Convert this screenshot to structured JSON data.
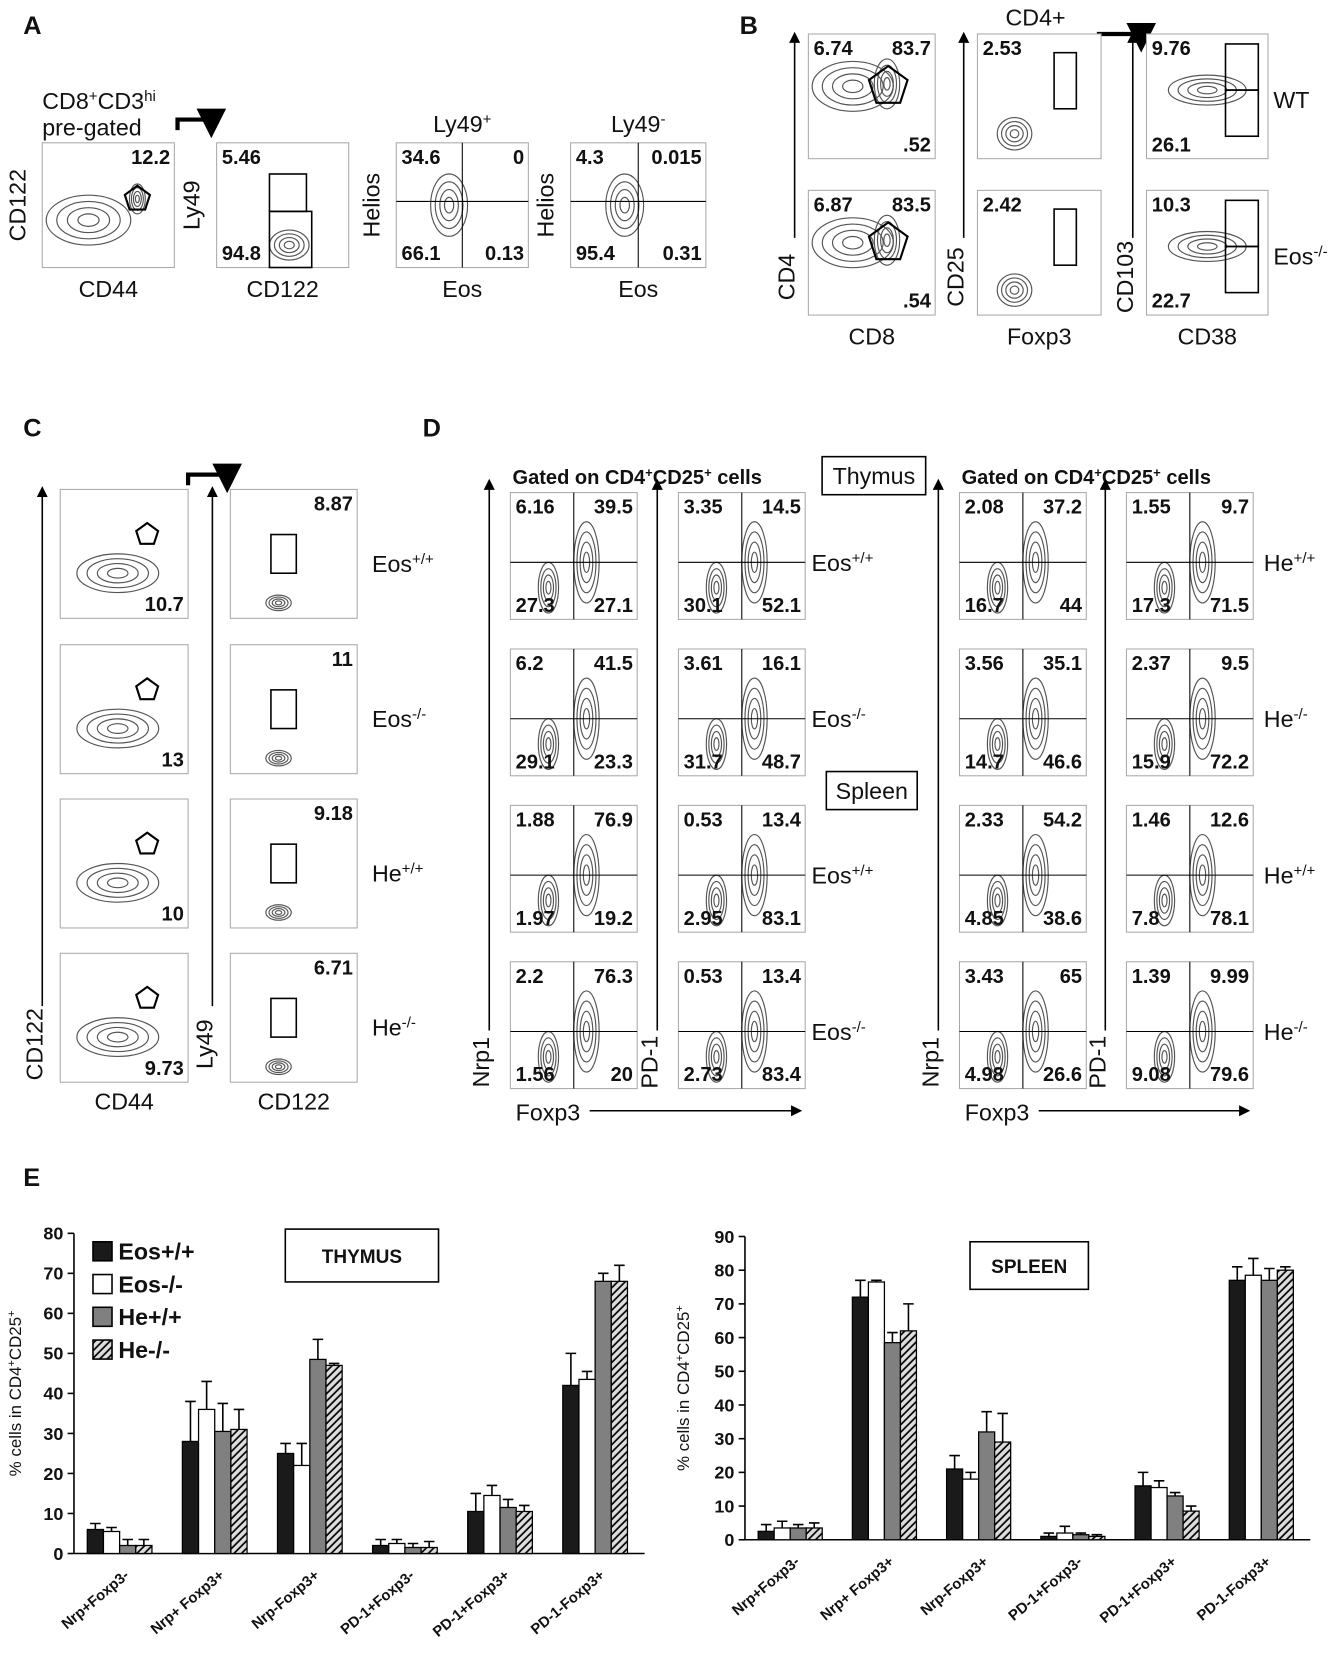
{
  "panel_labels": [
    "A",
    "B",
    "C",
    "D",
    "E"
  ],
  "A": {
    "pregate": [
      "CD8",
      "+",
      "CD3",
      "hi"
    ],
    "pregate_line2": "pre-gated",
    "plots": [
      {
        "ylabel": "CD122",
        "xlabel": "CD44",
        "numbers": {
          "tr": "12.2"
        }
      },
      {
        "ylabel": "Ly49",
        "xlabel": "CD122",
        "numbers": {
          "tl": "5.46",
          "bl": "94.8"
        }
      },
      {
        "title": [
          "Ly49",
          "+"
        ],
        "ylabel": "Helios",
        "xlabel": "Eos",
        "numbers": {
          "tl": "34.6",
          "tr": "0",
          "bl": "66.1",
          "br": "0.13"
        }
      },
      {
        "title": [
          "Ly49",
          "-"
        ],
        "ylabel": "Helios",
        "xlabel": "Eos",
        "numbers": {
          "tl": "4.3",
          "tr": "0.015",
          "bl": "95.4",
          "br": "0.31"
        }
      }
    ]
  },
  "B": {
    "header": "CD4+",
    "columns": [
      {
        "ylabel": "CD4",
        "xlabel": "CD8"
      },
      {
        "ylabel": "CD25",
        "xlabel": "Foxp3"
      },
      {
        "ylabel": "CD103",
        "xlabel": "CD38"
      }
    ],
    "rows": [
      {
        "label": [
          "WT"
        ],
        "plots": [
          {
            "tl": "6.74",
            "tr": "83.7",
            "br": ".52"
          },
          {
            "tl": "2.53"
          },
          {
            "tl": "9.76",
            "bl": "26.1"
          }
        ]
      },
      {
        "label": [
          "Eos",
          "-/-"
        ],
        "plots": [
          {
            "tl": "6.87",
            "tr": "83.5",
            "br": ".54"
          },
          {
            "tl": "2.42"
          },
          {
            "tl": "10.3",
            "bl": "22.7"
          }
        ]
      }
    ]
  },
  "C": {
    "columns": [
      {
        "ylabel": "CD122",
        "xlabel": "CD44"
      },
      {
        "ylabel": "Ly49",
        "xlabel": "CD122"
      }
    ],
    "rows": [
      {
        "label": [
          "Eos",
          "+/+"
        ],
        "plots": [
          {
            "br": "10.7"
          },
          {
            "tr": "8.87"
          }
        ]
      },
      {
        "label": [
          "Eos",
          "-/-"
        ],
        "plots": [
          {
            "br": "13"
          },
          {
            "tr": "11"
          }
        ]
      },
      {
        "label": [
          "He",
          "+/+"
        ],
        "plots": [
          {
            "br": "10"
          },
          {
            "tr": "9.18"
          }
        ]
      },
      {
        "label": [
          "He",
          "-/-"
        ],
        "plots": [
          {
            "br": "9.73"
          },
          {
            "tr": "6.71"
          }
        ]
      }
    ]
  },
  "D": {
    "tissues": [
      "Thymus",
      "Spleen"
    ],
    "groups": [
      {
        "header": [
          "Gated on CD4",
          "+",
          "CD25",
          "+",
          " cells"
        ],
        "ylabels": [
          "Nrp1",
          "PD-1"
        ],
        "xlabel": "Foxp3",
        "rows": [
          {
            "label": [
              "Eos",
              "+/+"
            ],
            "plots": [
              {
                "tl": "6.16",
                "tr": "39.5",
                "bl": "27.3",
                "br": "27.1"
              },
              {
                "tl": "3.35",
                "tr": "14.5",
                "bl": "30.1",
                "br": "52.1"
              }
            ]
          },
          {
            "label": [
              "Eos",
              "-/-"
            ],
            "plots": [
              {
                "tl": "6.2",
                "tr": "41.5",
                "bl": "29.1",
                "br": "23.3"
              },
              {
                "tl": "3.61",
                "tr": "16.1",
                "bl": "31.7",
                "br": "48.7"
              }
            ]
          },
          {
            "label": [
              "Eos",
              "+/+"
            ],
            "plots": [
              {
                "tl": "1.88",
                "tr": "76.9",
                "bl": "1.97",
                "br": "19.2"
              },
              {
                "tl": "0.53",
                "tr": "13.4",
                "bl": "2.95",
                "br": "83.1"
              }
            ]
          },
          {
            "label": [
              "Eos",
              "-/-"
            ],
            "plots": [
              {
                "tl": "2.2",
                "tr": "76.3",
                "bl": "1.56",
                "br": "20"
              },
              {
                "tl": "0.53",
                "tr": "13.4",
                "bl": "2.73",
                "br": "83.4"
              }
            ]
          }
        ]
      },
      {
        "header": [
          "Gated on CD4",
          "+",
          "CD25",
          "+",
          " cells"
        ],
        "ylabels": [
          "Nrp1",
          "PD-1"
        ],
        "xlabel": "Foxp3",
        "rows": [
          {
            "label": [
              "He",
              "+/+"
            ],
            "plots": [
              {
                "tl": "2.08",
                "tr": "37.2",
                "bl": "16.7",
                "br": "44"
              },
              {
                "tl": "1.55",
                "tr": "9.7",
                "bl": "17.3",
                "br": "71.5"
              }
            ]
          },
          {
            "label": [
              "He",
              "-/-"
            ],
            "plots": [
              {
                "tl": "3.56",
                "tr": "35.1",
                "bl": "14.7",
                "br": "46.6"
              },
              {
                "tl": "2.37",
                "tr": "9.5",
                "bl": "15.9",
                "br": "72.2"
              }
            ]
          },
          {
            "label": [
              "He",
              "+/+"
            ],
            "plots": [
              {
                "tl": "2.33",
                "tr": "54.2",
                "bl": "4.85",
                "br": "38.6"
              },
              {
                "tl": "1.46",
                "tr": "12.6",
                "bl": "7.8",
                "br": "78.1"
              }
            ]
          },
          {
            "label": [
              "He",
              "-/-"
            ],
            "plots": [
              {
                "tl": "3.43",
                "tr": "65",
                "bl": "4.98",
                "br": "26.6"
              },
              {
                "tl": "1.39",
                "tr": "9.99",
                "bl": "9.08",
                "br": "79.6"
              }
            ]
          }
        ]
      }
    ]
  },
  "chart_data": [
    {
      "type": "bar",
      "title": "THYMUS",
      "ylabel": [
        "% cells in CD4",
        "+",
        "CD25",
        "+"
      ],
      "categories": [
        "Nrp+Foxp3-",
        "Nrp+ Foxp3+",
        "Nrp-Foxp3+",
        "PD-1+Foxp3-",
        "PD-1+Foxp3+",
        "PD-1-Foxp3+"
      ],
      "ylim": [
        0,
        80
      ],
      "yticks": [
        0,
        10,
        20,
        30,
        40,
        50,
        60,
        70,
        80
      ],
      "legend": "upper left",
      "series": [
        {
          "name": "Eos+/+",
          "color": "#1a1a1a",
          "values": [
            6,
            28,
            25,
            2,
            10.5,
            42
          ],
          "errors": [
            1.5,
            10,
            2.5,
            1.5,
            4.5,
            8
          ]
        },
        {
          "name": "Eos-/-",
          "color": "#ffffff",
          "values": [
            5.5,
            36,
            22,
            2.5,
            14.5,
            43.5
          ],
          "errors": [
            1,
            7,
            5.5,
            1,
            2.5,
            2
          ]
        },
        {
          "name": "He+/+",
          "color": "#808080",
          "values": [
            2,
            30.5,
            48.5,
            1.5,
            11.5,
            68
          ],
          "errors": [
            1.5,
            7,
            5,
            1,
            2,
            2
          ]
        },
        {
          "name": "He-/-",
          "color": "#dddddd",
          "hatch": true,
          "values": [
            2,
            31,
            47,
            1.5,
            10.5,
            68
          ],
          "errors": [
            1.5,
            5,
            0.5,
            1.5,
            1.5,
            4
          ]
        }
      ]
    },
    {
      "type": "bar",
      "title": "SPLEEN",
      "ylabel": [
        "% cells in CD4",
        "+",
        "CD25",
        "+"
      ],
      "categories": [
        "Nrp+Foxp3-",
        "Nrp+ Foxp3+",
        "Nrp-Foxp3+",
        "PD-1+Foxp3-",
        "PD-1+Foxp3+",
        "PD-1-Foxp3+"
      ],
      "ylim": [
        0,
        90
      ],
      "yticks": [
        0,
        10,
        20,
        30,
        40,
        50,
        60,
        70,
        80,
        90
      ],
      "series": [
        {
          "color": "#1a1a1a",
          "values": [
            2.5,
            72,
            21,
            1,
            16,
            77
          ],
          "errors": [
            2,
            5,
            4,
            1,
            4,
            4
          ]
        },
        {
          "color": "#ffffff",
          "values": [
            3.5,
            76.5,
            18,
            2,
            15.5,
            78.5
          ],
          "errors": [
            2,
            0.5,
            2,
            2,
            2,
            5
          ]
        },
        {
          "color": "#808080",
          "values": [
            3.5,
            58.5,
            32,
            1.5,
            13,
            77
          ],
          "errors": [
            1,
            3,
            6,
            0.5,
            1,
            3.5
          ]
        },
        {
          "color": "#dddddd",
          "hatch": true,
          "values": [
            3.5,
            62,
            29,
            1,
            8.5,
            80
          ],
          "errors": [
            1.5,
            8,
            8.5,
            0.5,
            1.5,
            1
          ]
        }
      ]
    }
  ]
}
